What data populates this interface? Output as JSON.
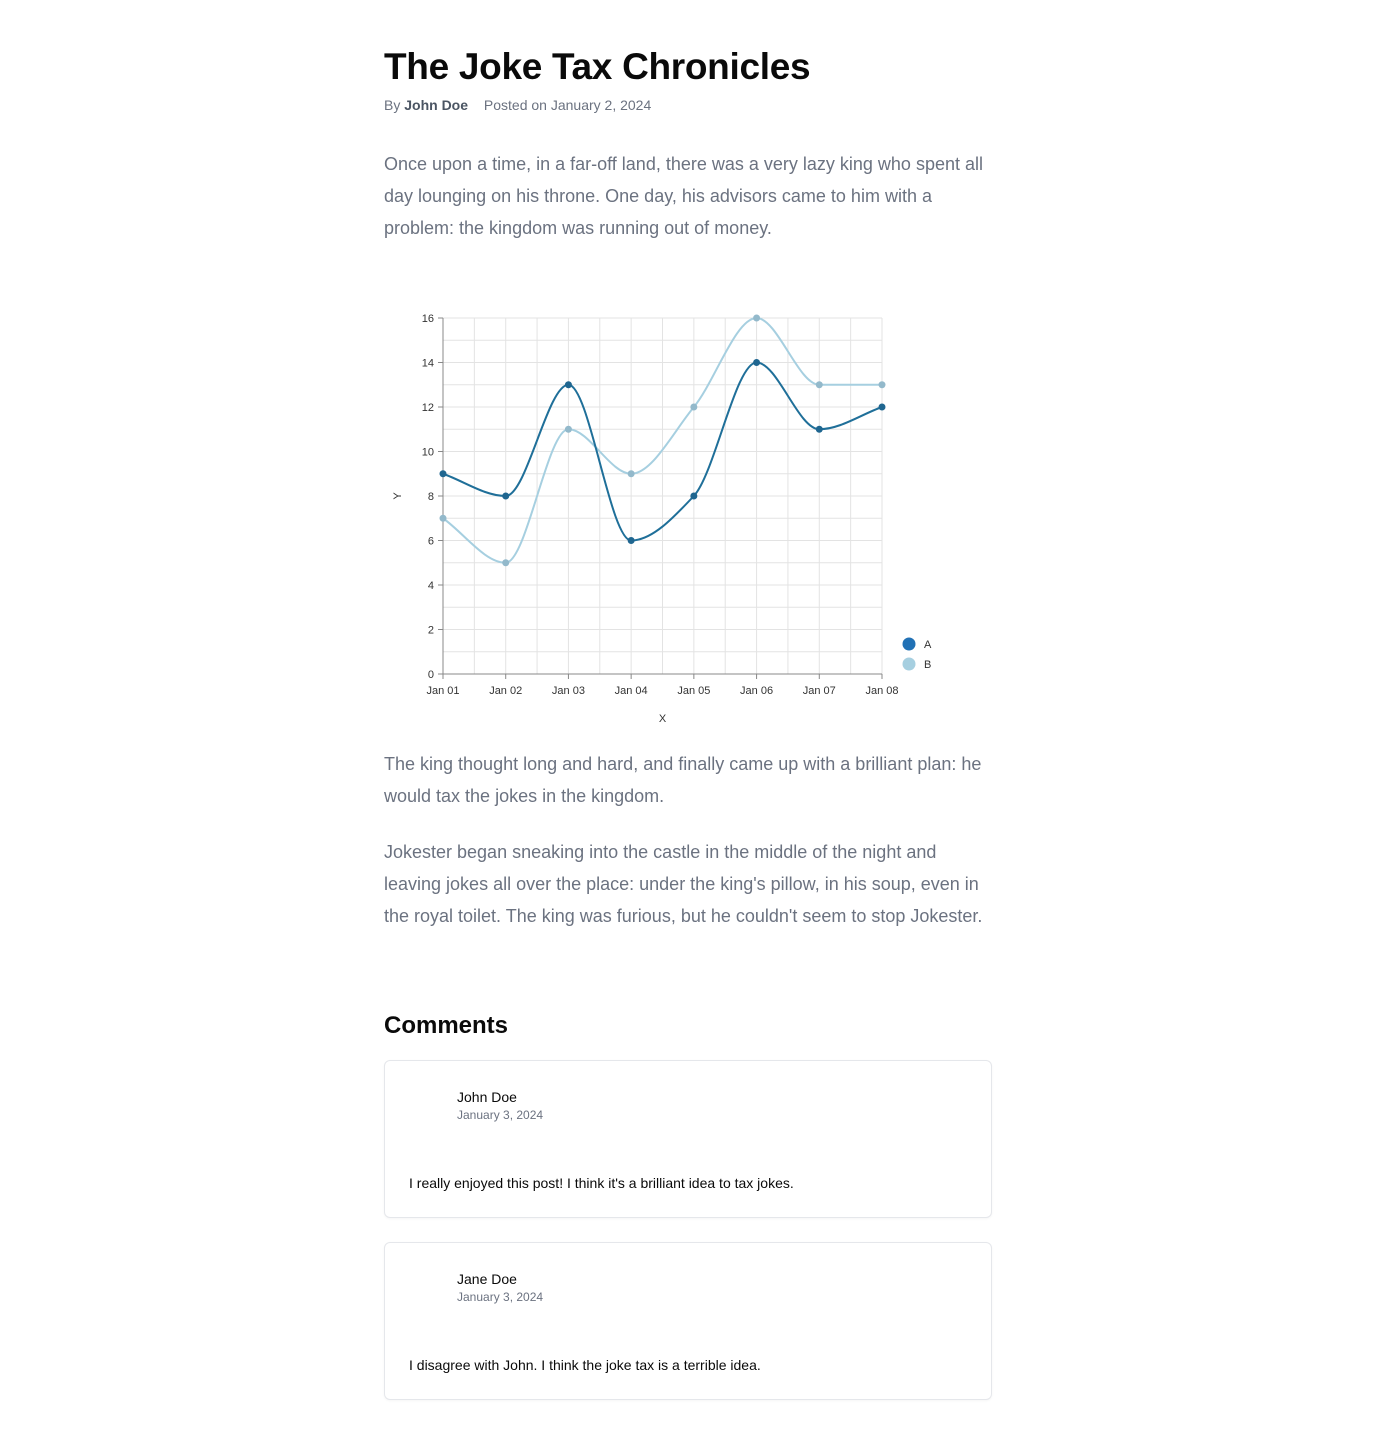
{
  "article": {
    "title": "The Joke Tax Chronicles",
    "byline_prefix": "By",
    "author": "John Doe",
    "posted": "Posted on January 2, 2024",
    "paragraphs": [
      "Once upon a time, in a far-off land, there was a very lazy king who spent all day lounging on his throne. One day, his advisors came to him with a problem: the kingdom was running out of money.",
      "The king thought long and hard, and finally came up with a brilliant plan: he would tax the jokes in the kingdom.",
      "Jokester began sneaking into the castle in the middle of the night and leaving jokes all over the place: under the king's pillow, in his soup, even in the royal toilet. The king was furious, but he couldn't seem to stop Jokester."
    ]
  },
  "chart_data": {
    "type": "line",
    "x": [
      "Jan 01",
      "Jan 02",
      "Jan 03",
      "Jan 04",
      "Jan 05",
      "Jan 06",
      "Jan 07",
      "Jan 08"
    ],
    "series": [
      {
        "name": "A",
        "color": "#1f6f99",
        "values": [
          9,
          8,
          13,
          6,
          8,
          14,
          11,
          12
        ]
      },
      {
        "name": "B",
        "color": "#a6cfe0",
        "values": [
          7,
          5,
          11,
          9,
          12,
          16,
          13,
          13
        ]
      }
    ],
    "xlabel": "X",
    "ylabel": "Y",
    "ylim": [
      0,
      16
    ],
    "yticks": [
      0,
      2,
      4,
      6,
      8,
      10,
      12,
      14,
      16
    ],
    "grid": true,
    "legend_position": "bottom-right",
    "legend_colors": [
      "#2171b5",
      "#a6cfe0"
    ],
    "interpolation": "smooth"
  },
  "comments": {
    "heading": "Comments",
    "items": [
      {
        "author": "John Doe",
        "date": "January 3, 2024",
        "text": "I really enjoyed this post! I think it's a brilliant idea to tax jokes."
      },
      {
        "author": "Jane Doe",
        "date": "January 3, 2024",
        "text": "I disagree with John. I think the joke tax is a terrible idea."
      }
    ]
  }
}
